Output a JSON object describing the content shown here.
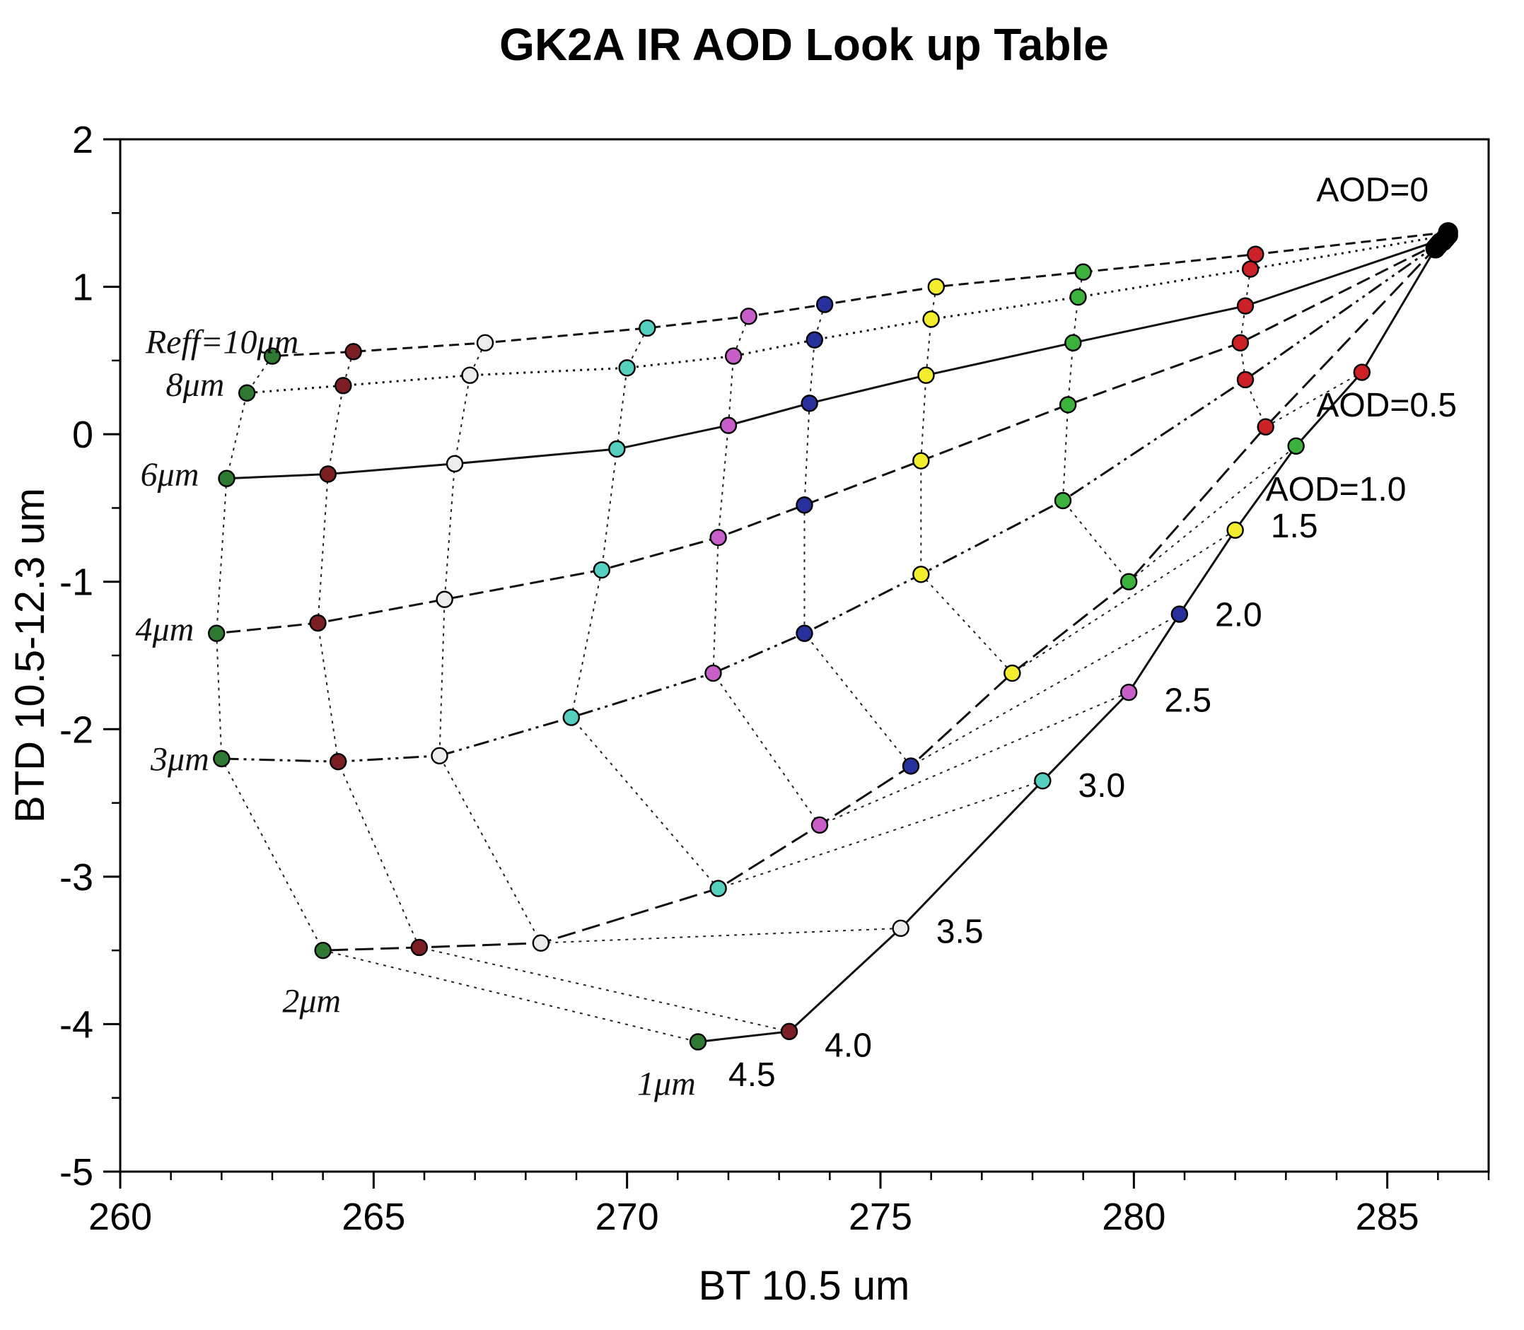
{
  "title": "GK2A IR AOD Look up Table",
  "chart_data": {
    "type": "line",
    "title": "GK2A IR AOD Look up Table",
    "xlabel": "BT 10.5 um",
    "ylabel": "BTD 10.5-12.3 um",
    "xlim": [
      260,
      287
    ],
    "ylim": [
      -5,
      2
    ],
    "xticks": [
      260,
      265,
      270,
      275,
      280,
      285
    ],
    "yticks": [
      2,
      1,
      0,
      -1,
      -2,
      -3,
      -4,
      -5
    ],
    "minor_xtick_step": 1,
    "minor_ytick_step": 0.5,
    "grid": false,
    "legend": "none (labels annotated on plot)",
    "aod_levels": [
      0,
      0.5,
      1.0,
      1.5,
      2.0,
      2.5,
      3.0,
      3.5,
      4.0,
      4.5
    ],
    "aod_colors": [
      "#000000",
      "#cc2127",
      "#3bb23b",
      "#f2ee2e",
      "#27309b",
      "#c85ec8",
      "#54cfc0",
      "#ececec",
      "#7c1f24",
      "#2f7a33"
    ],
    "series_note": "Each series is a constant effective radius (Reff) curve; points along each curve correspond to aod_levels. Points of equal AOD across curves are joined by dotted chain lines and share a marker color.",
    "series": [
      {
        "id": "reff-10",
        "name": "Reff=10μm",
        "dash": "14 8",
        "x": [
          286.2,
          282.4,
          279.0,
          276.1,
          273.9,
          272.4,
          270.4,
          267.2,
          264.6,
          263.0
        ],
        "y": [
          1.37,
          1.22,
          1.1,
          1.0,
          0.88,
          0.8,
          0.72,
          0.62,
          0.56,
          0.53
        ]
      },
      {
        "id": "reff-8",
        "name": "8μm",
        "dash": "3 7",
        "x": [
          286.2,
          282.3,
          278.9,
          276.0,
          273.7,
          272.1,
          270.0,
          266.9,
          264.4,
          262.5
        ],
        "y": [
          1.35,
          1.12,
          0.93,
          0.78,
          0.64,
          0.53,
          0.45,
          0.4,
          0.33,
          0.28
        ]
      },
      {
        "id": "reff-6",
        "name": "6μm",
        "dash": "",
        "x": [
          286.15,
          282.2,
          278.8,
          275.9,
          273.6,
          272.0,
          269.8,
          266.6,
          264.1,
          262.1
        ],
        "y": [
          1.33,
          0.87,
          0.62,
          0.4,
          0.21,
          0.06,
          -0.1,
          -0.2,
          -0.27,
          -0.3
        ]
      },
      {
        "id": "reff-4",
        "name": "4μm",
        "dash": "20 9",
        "x": [
          286.1,
          282.1,
          278.7,
          275.8,
          273.5,
          271.8,
          269.5,
          266.4,
          263.9,
          261.9
        ],
        "y": [
          1.31,
          0.62,
          0.2,
          -0.18,
          -0.48,
          -0.7,
          -0.92,
          -1.12,
          -1.28,
          -1.35
        ]
      },
      {
        "id": "reff-3",
        "name": "3μm",
        "dash": "22 7 4 7 4 7",
        "x": [
          286.05,
          282.2,
          278.6,
          275.8,
          273.5,
          271.7,
          268.9,
          266.3,
          264.3,
          262.0
        ],
        "y": [
          1.3,
          0.37,
          -0.45,
          -0.95,
          -1.35,
          -1.62,
          -1.92,
          -2.18,
          -2.22,
          -2.2
        ]
      },
      {
        "id": "reff-2",
        "name": "2μm",
        "dash": "26 10",
        "x": [
          286.0,
          282.6,
          279.9,
          277.6,
          275.6,
          273.8,
          271.8,
          268.3,
          265.9,
          264.0
        ],
        "y": [
          1.28,
          0.05,
          -1.0,
          -1.62,
          -2.25,
          -2.65,
          -3.08,
          -3.45,
          -3.48,
          -3.5
        ]
      },
      {
        "id": "reff-1",
        "name": "1μm",
        "dash": "",
        "x": [
          285.95,
          284.5,
          283.2,
          282.0,
          280.9,
          279.9,
          278.2,
          275.4,
          273.2,
          271.4
        ],
        "y": [
          1.26,
          0.42,
          -0.08,
          -0.65,
          -1.22,
          -1.75,
          -2.35,
          -3.35,
          -4.05,
          -4.12
        ]
      }
    ],
    "aod_labels": [
      {
        "text": "AOD=0",
        "x": 283.6,
        "y": 1.58
      },
      {
        "text": "AOD=0.5",
        "x": 283.6,
        "y": 0.12
      },
      {
        "text": "AOD=1.0",
        "x": 282.6,
        "y": -0.45
      },
      {
        "text": "1.5",
        "x": 282.7,
        "y": -0.7
      },
      {
        "text": "2.0",
        "x": 281.6,
        "y": -1.3
      },
      {
        "text": "2.5",
        "x": 280.6,
        "y": -1.88
      },
      {
        "text": "3.0",
        "x": 278.9,
        "y": -2.46
      },
      {
        "text": "3.5",
        "x": 276.1,
        "y": -3.45
      },
      {
        "text": "4.0",
        "x": 273.9,
        "y": -4.22
      },
      {
        "text": "4.5",
        "x": 272.0,
        "y": -4.42
      }
    ],
    "reff_labels": [
      {
        "text": "Reff=10μm",
        "x": 260.5,
        "y": 0.55
      },
      {
        "text": "8μm",
        "x": 260.9,
        "y": 0.26
      },
      {
        "text": "6μm",
        "x": 260.4,
        "y": -0.35
      },
      {
        "text": "4μm",
        "x": 260.3,
        "y": -1.4
      },
      {
        "text": "3μm",
        "x": 260.6,
        "y": -2.28
      },
      {
        "text": "2μm",
        "x": 263.2,
        "y": -3.92
      },
      {
        "text": "1μm",
        "x": 270.2,
        "y": -4.48
      }
    ]
  }
}
